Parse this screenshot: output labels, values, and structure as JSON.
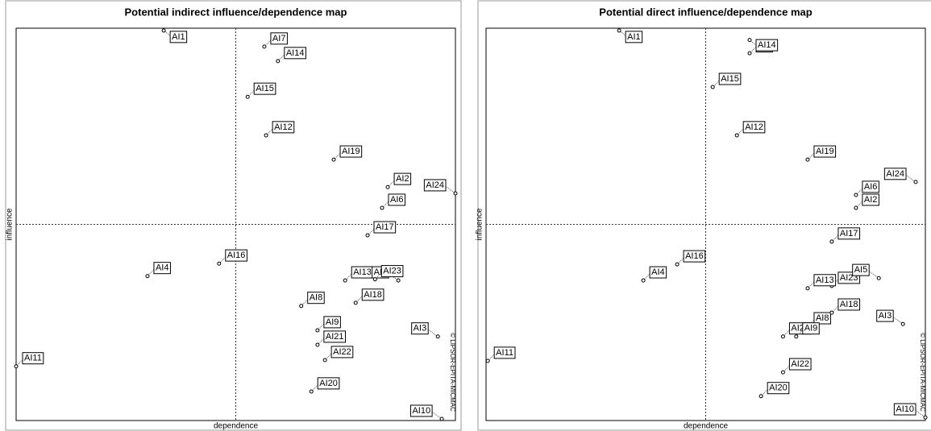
{
  "chart_data": [
    {
      "type": "scatter",
      "title": "Potential indirect influence/dependence map",
      "x_label": "dependence",
      "y_label": "influence",
      "annotation": "© LIPSOR-EPITA-MICMAC",
      "xlim": [
        0,
        100
      ],
      "ylim": [
        0,
        100
      ],
      "labels": [
        "AI1",
        "AI7",
        "AI14",
        "AI15",
        "AI12",
        "AI19",
        "AI2",
        "AI6",
        "AI24",
        "AI17",
        "AI16",
        "AI4",
        "AI13",
        "AI5",
        "AI23",
        "AI18",
        "AI8",
        "AI9",
        "AI21",
        "AI22",
        "AI3",
        "AI11",
        "AI20",
        "AI10"
      ],
      "x": [
        33.6,
        56.5,
        59.6,
        52.7,
        56.9,
        72.3,
        84.6,
        83.3,
        100,
        80,
        46.2,
        29.9,
        74.9,
        87,
        81.7,
        77.3,
        64.9,
        68.6,
        68.6,
        70.3,
        96,
        0,
        67.2,
        96.9
      ],
      "y": [
        99.4,
        95.3,
        91.6,
        82.5,
        72.7,
        66.5,
        59.5,
        54.2,
        57.9,
        47.2,
        40,
        36.8,
        35.7,
        35.7,
        36,
        30,
        29.2,
        23,
        19.3,
        15.4,
        21.4,
        13.8,
        7.4,
        0.4
      ]
    },
    {
      "type": "scatter",
      "title": "Potential direct influence/dependence map",
      "x_label": "dependence",
      "y_label": "influence",
      "annotation": "© LIPSOR-EPITA-MICMAC",
      "xlim": [
        0,
        100
      ],
      "ylim": [
        0,
        100
      ],
      "labels": [
        "AI1",
        "AI7",
        "AI14",
        "AI15",
        "AI12",
        "AI19",
        "AI24",
        "AI6",
        "AI2",
        "AI17",
        "AI4",
        "AI16",
        "AI23",
        "AI13",
        "AI5",
        "AI8",
        "AI18",
        "AI3",
        "AI21",
        "AI9",
        "AI22",
        "AI11",
        "AI20",
        "AI10"
      ],
      "x": [
        30.3,
        60,
        60,
        51.6,
        57.1,
        73.2,
        97.8,
        84.2,
        84.2,
        78.7,
        35.8,
        43.5,
        78.7,
        73.2,
        89.4,
        73.2,
        78.7,
        94.9,
        67.6,
        70.6,
        67.6,
        0.4,
        62.6,
        100
      ],
      "y": [
        99.4,
        97,
        93.6,
        85,
        72.7,
        66.5,
        60.8,
        57.5,
        54.2,
        45.6,
        35.7,
        39.8,
        34.3,
        33.7,
        36.3,
        24,
        27.5,
        24.6,
        21.4,
        21.4,
        12.3,
        15.2,
        6.2,
        0.8
      ]
    }
  ]
}
